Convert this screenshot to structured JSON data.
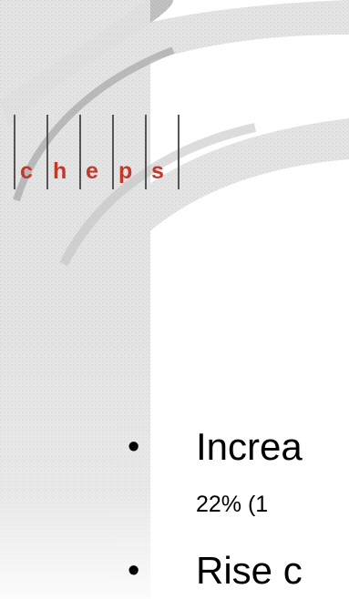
{
  "logo": {
    "letters": [
      "c",
      "h",
      "e",
      "p",
      "s"
    ],
    "color": "#c0392b"
  },
  "bullets": [
    {
      "marker": "•",
      "text": "Increa",
      "subtext": "22% (1"
    },
    {
      "marker": "•",
      "text": "Rise c"
    }
  ],
  "colors": {
    "swoosh_dark": "#b8b8b8",
    "swoosh_light": "#e2e2e2",
    "text": "#000000"
  }
}
